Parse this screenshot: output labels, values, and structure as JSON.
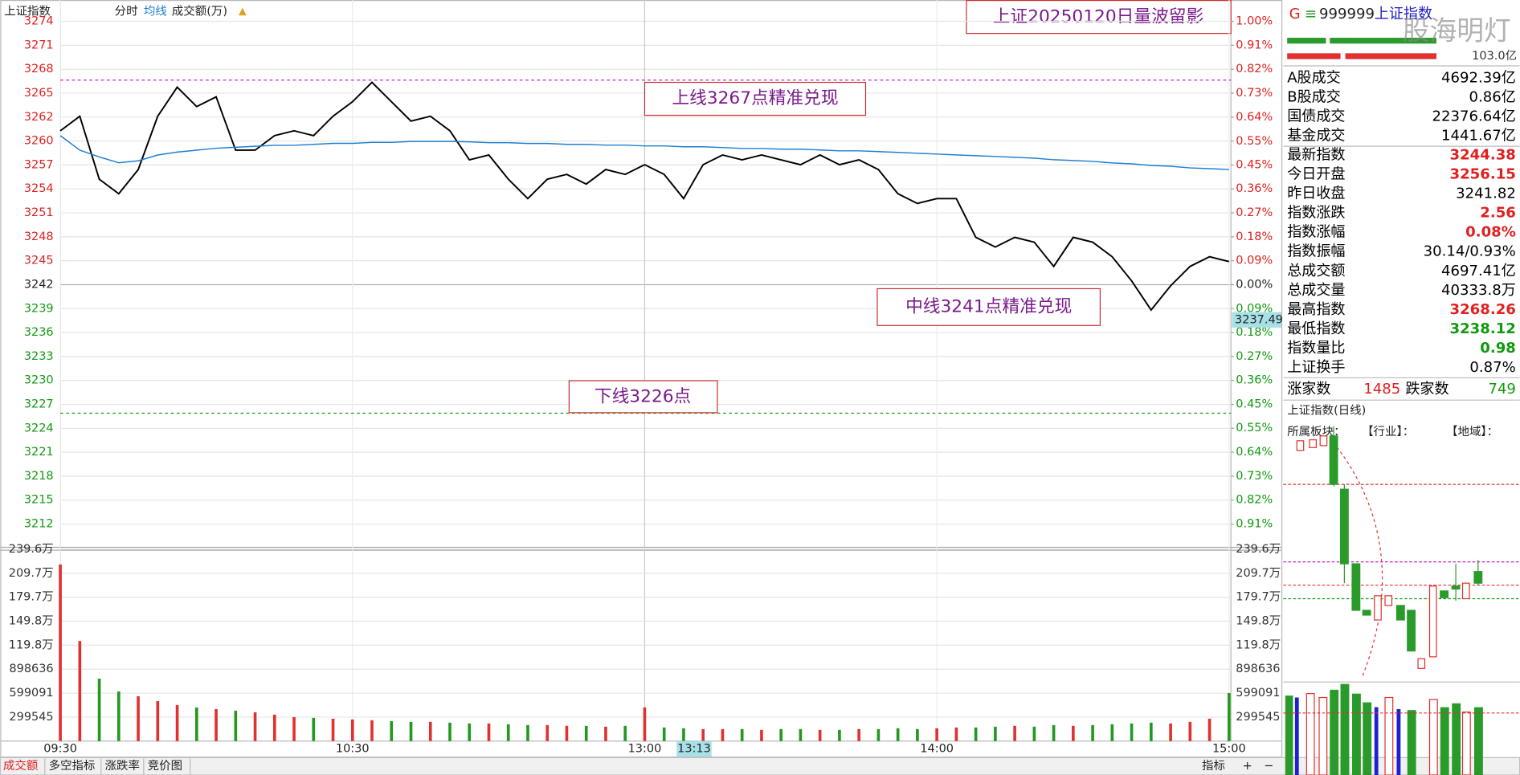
{
  "header": {
    "symbol": "上证指数"
  },
  "watermark": "股海明灯",
  "chart_data": [
    {
      "type": "line",
      "title": "上证20250120日量波留影",
      "x": [
        0,
        4,
        8,
        12,
        16,
        20,
        24,
        28,
        32,
        36,
        40,
        44,
        48,
        52,
        56,
        60,
        64,
        68,
        72,
        76,
        80,
        84,
        88,
        92,
        96,
        100,
        104,
        108,
        112,
        116,
        120,
        124,
        128,
        132,
        136,
        140,
        144,
        148,
        152,
        156,
        160,
        164,
        168,
        172,
        176,
        180,
        184,
        188,
        192,
        196,
        200,
        204,
        208,
        212,
        216,
        220,
        224,
        228,
        232,
        236,
        240
      ],
      "xlim": [
        0,
        240
      ],
      "xticks": [
        {
          "value": 0,
          "label": "09:30"
        },
        {
          "value": 60,
          "label": "10:30"
        },
        {
          "value": 120,
          "label": "13:00"
        },
        {
          "value": 180,
          "label": "14:00"
        },
        {
          "value": 240,
          "label": "15:00"
        }
      ],
      "ylim": [
        3212.35,
        3274.24
      ],
      "yticks": [
        {
          "value": 3274.24,
          "label": "3274"
        },
        {
          "value": 3271.29,
          "label": "3271"
        },
        {
          "value": 3268.34,
          "label": "3268"
        },
        {
          "value": 3265.4,
          "label": "3265"
        },
        {
          "value": 3262.45,
          "label": "3262"
        },
        {
          "value": 3259.5,
          "label": "3260"
        },
        {
          "value": 3256.56,
          "label": "3257"
        },
        {
          "value": 3253.61,
          "label": "3254"
        },
        {
          "value": 3250.66,
          "label": "3251"
        },
        {
          "value": 3247.71,
          "label": "3248"
        },
        {
          "value": 3244.77,
          "label": "3245"
        },
        {
          "value": 3241.82,
          "label": "3242"
        },
        {
          "value": 3238.87,
          "label": "3239"
        },
        {
          "value": 3235.93,
          "label": "3236"
        },
        {
          "value": 3232.98,
          "label": "3233"
        },
        {
          "value": 3230.03,
          "label": "3230"
        },
        {
          "value": 3227.08,
          "label": "3227"
        },
        {
          "value": 3224.14,
          "label": "3224"
        },
        {
          "value": 3221.19,
          "label": "3221"
        },
        {
          "value": 3218.24,
          "label": "3218"
        },
        {
          "value": 3215.3,
          "label": "3215"
        },
        {
          "value": 3212.35,
          "label": "3212"
        }
      ],
      "y2lim": [
        -0.909,
        1.0
      ],
      "y2ticks": [
        {
          "value": 1.0,
          "label": "1.00%"
        },
        {
          "value": 0.909,
          "label": "0.91%"
        },
        {
          "value": 0.818,
          "label": "0.82%"
        },
        {
          "value": 0.727,
          "label": "0.73%"
        },
        {
          "value": 0.636,
          "label": "0.64%"
        },
        {
          "value": 0.545,
          "label": "0.55%"
        },
        {
          "value": 0.4545,
          "label": "0.45%"
        },
        {
          "value": 0.3636,
          "label": "0.36%"
        },
        {
          "value": 0.2727,
          "label": "0.27%"
        },
        {
          "value": 0.1818,
          "label": "0.18%"
        },
        {
          "value": 0.0909,
          "label": "0.09%"
        },
        {
          "value": 0,
          "label": "0.00%"
        },
        {
          "value": -0.0909,
          "label": "0.09%"
        },
        {
          "value": -0.1818,
          "label": "0.18%"
        },
        {
          "value": -0.2727,
          "label": "0.27%"
        },
        {
          "value": -0.3636,
          "label": "0.36%"
        },
        {
          "value": -0.4545,
          "label": "0.45%"
        },
        {
          "value": -0.545,
          "label": "0.55%"
        },
        {
          "value": -0.636,
          "label": "0.64%"
        },
        {
          "value": -0.727,
          "label": "0.73%"
        },
        {
          "value": -0.818,
          "label": "0.82%"
        },
        {
          "value": -0.909,
          "label": "0.91%"
        }
      ],
      "grid": true,
      "series": [
        {
          "name": "分时",
          "color": "#000000",
          "values": [
            3260.77,
            3262.55,
            3254.8,
            3253.01,
            3256.0,
            3262.55,
            3266.13,
            3263.75,
            3264.94,
            3258.38,
            3258.38,
            3260.17,
            3260.77,
            3260.17,
            3262.55,
            3264.34,
            3266.73,
            3264.34,
            3261.96,
            3262.55,
            3260.77,
            3257.19,
            3257.78,
            3254.8,
            3252.42,
            3254.8,
            3255.4,
            3254.21,
            3256.0,
            3255.4,
            3256.59,
            3255.4,
            3252.42,
            3256.59,
            3257.78,
            3257.19,
            3257.78,
            3257.19,
            3256.59,
            3257.78,
            3256.59,
            3257.19,
            3256.0,
            3253.01,
            3251.82,
            3252.42,
            3252.42,
            3247.65,
            3246.46,
            3247.65,
            3247.05,
            3244.07,
            3247.65,
            3247.05,
            3245.26,
            3242.28,
            3238.7,
            3241.69,
            3244.07,
            3245.26,
            3244.67
          ]
        },
        {
          "name": "均线",
          "color": "#1e7fd0",
          "values": [
            3260.17,
            3258.38,
            3257.55,
            3256.83,
            3257.07,
            3257.78,
            3258.14,
            3258.38,
            3258.62,
            3258.74,
            3258.86,
            3258.98,
            3258.98,
            3259.1,
            3259.22,
            3259.22,
            3259.33,
            3259.33,
            3259.45,
            3259.45,
            3259.45,
            3259.4,
            3259.3,
            3259.3,
            3259.2,
            3259.2,
            3259.1,
            3259.1,
            3259.0,
            3259.0,
            3258.9,
            3258.9,
            3258.8,
            3258.8,
            3258.7,
            3258.6,
            3258.6,
            3258.5,
            3258.5,
            3258.4,
            3258.3,
            3258.3,
            3258.2,
            3258.1,
            3258.0,
            3257.9,
            3257.8,
            3257.7,
            3257.6,
            3257.5,
            3257.4,
            3257.2,
            3257.1,
            3257.0,
            3256.8,
            3256.7,
            3256.5,
            3256.4,
            3256.2,
            3256.1,
            3256.0
          ]
        }
      ],
      "levels": [
        {
          "value": 3267,
          "color": "#c020c0"
        },
        {
          "value": 3226,
          "color": "#109a10"
        }
      ],
      "annotations": [
        "上线3267点精准兑现",
        "中线3241点精准兑现",
        "下线3226点"
      ],
      "cursor": {
        "time": "13:13",
        "price": 3237.49
      }
    },
    {
      "type": "bar",
      "title": "成交额(万)",
      "x": [
        0,
        4,
        8,
        12,
        16,
        20,
        24,
        28,
        32,
        36,
        40,
        44,
        48,
        52,
        56,
        60,
        64,
        68,
        72,
        76,
        80,
        84,
        88,
        92,
        96,
        100,
        104,
        108,
        112,
        116,
        120,
        124,
        128,
        132,
        136,
        140,
        144,
        148,
        152,
        156,
        160,
        164,
        168,
        172,
        176,
        180,
        184,
        188,
        192,
        196,
        200,
        204,
        208,
        212,
        216,
        220,
        224,
        228,
        232,
        236,
        240
      ],
      "xlim": [
        0,
        240
      ],
      "ylim": [
        0,
        2396360
      ],
      "yticks": [
        {
          "value": 2396360,
          "label": "239.6万"
        },
        {
          "value": 2096815,
          "label": "209.7万"
        },
        {
          "value": 1797270,
          "label": "179.7万"
        },
        {
          "value": 1497725,
          "label": "149.8万"
        },
        {
          "value": 1198180,
          "label": "119.8万"
        },
        898636,
        599091,
        299545
      ],
      "color_up": "#e03030",
      "color_down": "#1f9a1f",
      "values": [
        2207000,
        1250000,
        780000,
        620000,
        560000,
        500000,
        450000,
        420000,
        400000,
        380000,
        360000,
        330000,
        300000,
        290000,
        280000,
        270000,
        260000,
        250000,
        240000,
        240000,
        230000,
        220000,
        220000,
        210000,
        200000,
        200000,
        190000,
        190000,
        180000,
        190000,
        420000,
        170000,
        160000,
        150000,
        150000,
        150000,
        140000,
        150000,
        150000,
        140000,
        140000,
        150000,
        150000,
        160000,
        150000,
        160000,
        170000,
        170000,
        180000,
        190000,
        180000,
        200000,
        190000,
        200000,
        210000,
        220000,
        230000,
        220000,
        240000,
        280000,
        600000
      ]
    }
  ],
  "panel": {
    "flag": "G",
    "code": "999999",
    "name": "上证指数",
    "bar_label": "103.0亿",
    "rows": [
      {
        "label": "A股成交",
        "value": "4692.39亿",
        "color": "#000"
      },
      {
        "label": "B股成交",
        "value": "0.86亿",
        "color": "#000"
      },
      {
        "label": "国债成交",
        "value": "22376.64亿",
        "color": "#000"
      },
      {
        "label": "基金成交",
        "value": "1441.67亿",
        "color": "#000"
      },
      {
        "label": "最新指数",
        "value": "3244.38",
        "color": "#e02020"
      },
      {
        "label": "今日开盘",
        "value": "3256.15",
        "color": "#e02020"
      },
      {
        "label": "昨日收盘",
        "value": "3241.82",
        "color": "#000"
      },
      {
        "label": "指数涨跌",
        "value": "2.56",
        "color": "#e02020"
      },
      {
        "label": "指数涨幅",
        "value": "0.08%",
        "color": "#e02020"
      },
      {
        "label": "指数振幅",
        "value": "30.14/0.93%",
        "color": "#000"
      },
      {
        "label": "总成交额",
        "value": "4697.41亿",
        "color": "#000"
      },
      {
        "label": "总成交量",
        "value": "40333.8万",
        "color": "#000"
      },
      {
        "label": "最高指数",
        "value": "3268.26",
        "color": "#e02020"
      },
      {
        "label": "最低指数",
        "value": "3238.12",
        "color": "#109a10"
      },
      {
        "label": "指数量比",
        "value": "0.98",
        "color": "#109a10"
      },
      {
        "label": "上证换手",
        "value": "0.87%",
        "color": "#000"
      }
    ],
    "breadth": {
      "up_label": "涨家数",
      "up": "1485",
      "down_label": "跌家数",
      "down": "749"
    },
    "daily_title": "上证指数(日线)",
    "sector": [
      "所属板块：",
      "【行业】：",
      "【地域】："
    ]
  },
  "tabs": [
    "成交额",
    "多空指标",
    "涨跌率",
    "竞价图"
  ],
  "tools": [
    "指标",
    "+",
    "−"
  ]
}
